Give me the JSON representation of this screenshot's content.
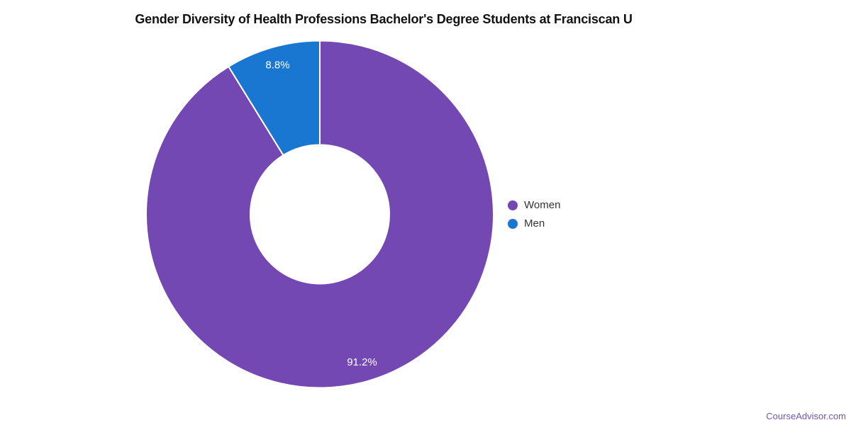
{
  "chart_data": {
    "type": "pie",
    "title": "Gender Diversity of Health Professions Bachelor's Degree Students at Franciscan U",
    "labels": [
      "Women",
      "Men"
    ],
    "values": [
      91.2,
      8.8
    ],
    "value_labels": [
      "91.2%",
      "8.8%"
    ],
    "unit": "%",
    "colors": [
      "#7348B3",
      "#1977D2"
    ],
    "donut": true,
    "start_at_top": true,
    "direction": "clockwise",
    "slice_border_color": "#FFFFFF",
    "legend_position": "right",
    "labels_inside_slices": true
  },
  "legend": {
    "items": [
      {
        "label": "Women",
        "color": "#7348B3"
      },
      {
        "label": "Men",
        "color": "#1977D2"
      }
    ]
  },
  "footer": {
    "text": "CourseAdvisor.com",
    "color": "#7356AD"
  }
}
